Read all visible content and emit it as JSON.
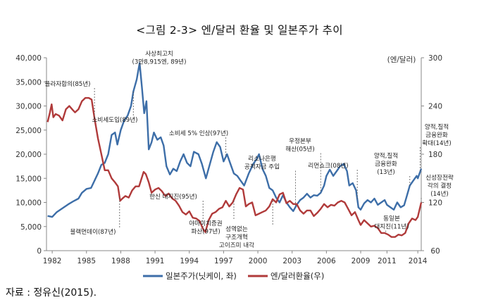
{
  "title": "<그림 2-3> 엔/달러 환율 및 일본주가 추이",
  "source": "자료 : 정유신(2015).",
  "chart_data": {
    "type": "line",
    "title": "<그림 2-3> 엔/달러 환율 및 일본주가 추이",
    "xlim": [
      1981.5,
      2014.3
    ],
    "x_ticks": [
      "1982",
      "1985",
      "1988",
      "1991",
      "1994",
      "1997",
      "2000",
      "2003",
      "2006",
      "2009",
      "2011",
      "2014"
    ],
    "x_tick_values": [
      1982,
      1985,
      1988,
      1991,
      1994,
      1997,
      2000,
      2003,
      2006,
      2009,
      2011.3,
      2014
    ],
    "y_left": {
      "ticks": [
        "0",
        "5,000",
        "10,000",
        "15,000",
        "20,000",
        "25,000",
        "30,000",
        "35,000",
        "40,000"
      ],
      "range": [
        0,
        40000
      ]
    },
    "y_right": {
      "label": "(엔/달러)",
      "ticks": [
        "60",
        "120",
        "180",
        "240",
        "300"
      ],
      "range": [
        60,
        300
      ]
    },
    "grid": false,
    "legend_position": "bottom",
    "series": [
      {
        "name": "일본주가(닛케이, 좌)",
        "axis": "left",
        "color": "#3d6ea8",
        "points": [
          [
            1981.6,
            7200
          ],
          [
            1982.0,
            7000
          ],
          [
            1982.4,
            8000
          ],
          [
            1982.9,
            8800
          ],
          [
            1983.4,
            9600
          ],
          [
            1983.9,
            10300
          ],
          [
            1984.3,
            10800
          ],
          [
            1984.6,
            12000
          ],
          [
            1985.0,
            12800
          ],
          [
            1985.4,
            13000
          ],
          [
            1985.7,
            14500
          ],
          [
            1986.0,
            16000
          ],
          [
            1986.3,
            17800
          ],
          [
            1986.6,
            18200
          ],
          [
            1986.9,
            20000
          ],
          [
            1987.2,
            24000
          ],
          [
            1987.5,
            24500
          ],
          [
            1987.7,
            22000
          ],
          [
            1988.0,
            25000
          ],
          [
            1988.3,
            27000
          ],
          [
            1988.6,
            28000
          ],
          [
            1988.9,
            30000
          ],
          [
            1989.1,
            33000
          ],
          [
            1989.4,
            35500
          ],
          [
            1989.65,
            38900
          ],
          [
            1989.85,
            34000
          ],
          [
            1990.05,
            28500
          ],
          [
            1990.25,
            31000
          ],
          [
            1990.45,
            21000
          ],
          [
            1990.7,
            22500
          ],
          [
            1990.9,
            24500
          ],
          [
            1991.2,
            23000
          ],
          [
            1991.5,
            23500
          ],
          [
            1991.75,
            21800
          ],
          [
            1992.0,
            17500
          ],
          [
            1992.3,
            15800
          ],
          [
            1992.6,
            17000
          ],
          [
            1992.9,
            16500
          ],
          [
            1993.2,
            18500
          ],
          [
            1993.5,
            20000
          ],
          [
            1993.8,
            18200
          ],
          [
            1994.1,
            17500
          ],
          [
            1994.4,
            20500
          ],
          [
            1994.8,
            20000
          ],
          [
            1995.1,
            18000
          ],
          [
            1995.45,
            15000
          ],
          [
            1995.75,
            17500
          ],
          [
            1996.1,
            20500
          ],
          [
            1996.4,
            22500
          ],
          [
            1996.7,
            21500
          ],
          [
            1997.0,
            18500
          ],
          [
            1997.3,
            20000
          ],
          [
            1997.6,
            18000
          ],
          [
            1997.9,
            16000
          ],
          [
            1998.2,
            15500
          ],
          [
            1998.5,
            14500
          ],
          [
            1998.8,
            13500
          ],
          [
            1999.2,
            16000
          ],
          [
            1999.6,
            18000
          ],
          [
            1999.9,
            19000
          ],
          [
            2000.1,
            20000
          ],
          [
            2000.4,
            17000
          ],
          [
            2000.7,
            15500
          ],
          [
            2001.0,
            13000
          ],
          [
            2001.3,
            12500
          ],
          [
            2001.6,
            11000
          ],
          [
            2001.9,
            10000
          ],
          [
            2002.2,
            11500
          ],
          [
            2002.5,
            10000
          ],
          [
            2002.8,
            9000
          ],
          [
            2003.1,
            8200
          ],
          [
            2003.4,
            9500
          ],
          [
            2003.7,
            10500
          ],
          [
            2004.0,
            11000
          ],
          [
            2004.3,
            11800
          ],
          [
            2004.6,
            11000
          ],
          [
            2004.9,
            11500
          ],
          [
            2005.2,
            11400
          ],
          [
            2005.5,
            12000
          ],
          [
            2005.8,
            13500
          ],
          [
            2006.0,
            15500
          ],
          [
            2006.3,
            16800
          ],
          [
            2006.6,
            15500
          ],
          [
            2006.9,
            16500
          ],
          [
            2007.2,
            17500
          ],
          [
            2007.5,
            18000
          ],
          [
            2007.8,
            16500
          ],
          [
            2008.0,
            13500
          ],
          [
            2008.3,
            14000
          ],
          [
            2008.6,
            12500
          ],
          [
            2008.8,
            9000
          ],
          [
            2009.0,
            8500
          ],
          [
            2009.3,
            9800
          ],
          [
            2009.6,
            10500
          ],
          [
            2009.9,
            10000
          ],
          [
            2010.2,
            10800
          ],
          [
            2010.5,
            9500
          ],
          [
            2010.8,
            10000
          ],
          [
            2011.1,
            10500
          ],
          [
            2011.3,
            9500
          ],
          [
            2011.6,
            9000
          ],
          [
            2011.9,
            8500
          ],
          [
            2012.2,
            10000
          ],
          [
            2012.5,
            9000
          ],
          [
            2012.8,
            9400
          ],
          [
            2013.0,
            11000
          ],
          [
            2013.3,
            13500
          ],
          [
            2013.6,
            14500
          ],
          [
            2013.9,
            15500
          ],
          [
            2014.0,
            15000
          ],
          [
            2014.3,
            17000
          ]
        ]
      },
      {
        "name": "엔/달러환율(우)",
        "axis": "right",
        "color": "#b03a3a",
        "points": [
          [
            1981.6,
            220
          ],
          [
            1981.8,
            232
          ],
          [
            1981.95,
            242
          ],
          [
            1982.1,
            226
          ],
          [
            1982.3,
            230
          ],
          [
            1982.6,
            228
          ],
          [
            1982.9,
            222
          ],
          [
            1983.2,
            236
          ],
          [
            1983.5,
            240
          ],
          [
            1983.8,
            235
          ],
          [
            1984.0,
            232
          ],
          [
            1984.3,
            236
          ],
          [
            1984.6,
            246
          ],
          [
            1984.9,
            250
          ],
          [
            1985.2,
            250
          ],
          [
            1985.45,
            248
          ],
          [
            1985.7,
            225
          ],
          [
            1986.0,
            200
          ],
          [
            1986.3,
            180
          ],
          [
            1986.6,
            160
          ],
          [
            1986.9,
            160
          ],
          [
            1987.2,
            150
          ],
          [
            1987.5,
            145
          ],
          [
            1987.75,
            140
          ],
          [
            1987.95,
            122
          ],
          [
            1988.15,
            125
          ],
          [
            1988.4,
            128
          ],
          [
            1988.7,
            126
          ],
          [
            1989.0,
            135
          ],
          [
            1989.3,
            140
          ],
          [
            1989.6,
            140
          ],
          [
            1990.0,
            158
          ],
          [
            1990.2,
            155
          ],
          [
            1990.45,
            145
          ],
          [
            1990.7,
            132
          ],
          [
            1991.0,
            136
          ],
          [
            1991.3,
            138
          ],
          [
            1991.6,
            134
          ],
          [
            1991.9,
            128
          ],
          [
            1992.2,
            131
          ],
          [
            1992.5,
            125
          ],
          [
            1992.8,
            122
          ],
          [
            1993.1,
            116
          ],
          [
            1993.4,
            108
          ],
          [
            1993.7,
            105
          ],
          [
            1994.0,
            109
          ],
          [
            1994.3,
            101
          ],
          [
            1994.6,
            100
          ],
          [
            1994.9,
            97
          ],
          [
            1995.2,
            87
          ],
          [
            1995.4,
            83
          ],
          [
            1995.7,
            98
          ],
          [
            1996.0,
            106
          ],
          [
            1996.3,
            108
          ],
          [
            1996.6,
            112
          ],
          [
            1996.9,
            114
          ],
          [
            1997.2,
            122
          ],
          [
            1997.5,
            115
          ],
          [
            1997.8,
            120
          ],
          [
            1998.1,
            130
          ],
          [
            1998.4,
            138
          ],
          [
            1998.7,
            136
          ],
          [
            1998.95,
            115
          ],
          [
            1999.2,
            118
          ],
          [
            1999.5,
            120
          ],
          [
            1999.8,
            104
          ],
          [
            2000.1,
            106
          ],
          [
            2000.4,
            108
          ],
          [
            2000.7,
            110
          ],
          [
            2001.0,
            115
          ],
          [
            2001.3,
            124
          ],
          [
            2001.6,
            120
          ],
          [
            2001.9,
            130
          ],
          [
            2002.2,
            132
          ],
          [
            2002.5,
            119
          ],
          [
            2002.8,
            122
          ],
          [
            2003.1,
            118
          ],
          [
            2003.4,
            118
          ],
          [
            2003.7,
            110
          ],
          [
            2004.0,
            106
          ],
          [
            2004.3,
            110
          ],
          [
            2004.6,
            110
          ],
          [
            2004.9,
            103
          ],
          [
            2005.2,
            107
          ],
          [
            2005.5,
            112
          ],
          [
            2005.8,
            118
          ],
          [
            2006.1,
            114
          ],
          [
            2006.4,
            117
          ],
          [
            2006.7,
            116
          ],
          [
            2007.0,
            120
          ],
          [
            2007.3,
            122
          ],
          [
            2007.6,
            120
          ],
          [
            2007.9,
            112
          ],
          [
            2008.2,
            104
          ],
          [
            2008.5,
            108
          ],
          [
            2008.8,
            98
          ],
          [
            2009.0,
            92
          ],
          [
            2009.3,
            98
          ],
          [
            2009.6,
            94
          ],
          [
            2009.9,
            90
          ],
          [
            2010.2,
            91
          ],
          [
            2010.5,
            88
          ],
          [
            2010.8,
            82
          ],
          [
            2011.1,
            82
          ],
          [
            2011.4,
            80
          ],
          [
            2011.7,
            77
          ],
          [
            2012.0,
            77
          ],
          [
            2012.3,
            80
          ],
          [
            2012.6,
            79
          ],
          [
            2012.9,
            82
          ],
          [
            2013.2,
            94
          ],
          [
            2013.5,
            100
          ],
          [
            2013.8,
            98
          ],
          [
            2014.0,
            102
          ],
          [
            2014.3,
            120
          ]
        ]
      }
    ],
    "annotations": [
      {
        "lines": [
          "사상최고치",
          "(3만8,915엔, 89년)"
        ],
        "x": 1989.65,
        "series": "left"
      },
      {
        "lines": [
          "플라자합의(85년)"
        ],
        "x": 1985.7,
        "series": "right"
      },
      {
        "lines": [
          "소비세도입(89년)"
        ],
        "x": 1989.1,
        "series": "left"
      },
      {
        "lines": [
          "블랙먼데이(87년)"
        ],
        "x": 1987.9,
        "series": "right"
      },
      {
        "lines": [
          "한신 대지진(95년)"
        ],
        "x": 1995.2,
        "series": "right"
      },
      {
        "lines": [
          "소비세 5% 인상(97년)"
        ],
        "x": 1997.2,
        "series": "left"
      },
      {
        "lines": [
          "야마이치증권",
          "파산(97년)"
        ],
        "x": 1997.9,
        "series": "right"
      },
      {
        "lines": [
          "성역없는",
          "구조개혁",
          "고이즈미 내각"
        ],
        "x": 2001.3,
        "series": "right"
      },
      {
        "lines": [
          "리소나은행",
          "공적자금 주입"
        ],
        "x": 2003.3,
        "series": "left"
      },
      {
        "lines": [
          "우정본부",
          "해산(05년)"
        ],
        "x": 2005.5,
        "series": "left"
      },
      {
        "lines": [
          "리먼쇼크(08년)"
        ],
        "x": 2008.7,
        "series": "left"
      },
      {
        "lines": [
          "양적,질적",
          "금융완화",
          "(13년)"
        ],
        "x": 2013.3,
        "series": "left"
      },
      {
        "lines": [
          "동일본",
          "대지진(11년)"
        ],
        "x": 2011.2,
        "series": "right"
      },
      {
        "lines": [
          "양적,질적",
          "금융완화",
          "확대(14년)"
        ],
        "x": 2014.2,
        "series": "left"
      },
      {
        "lines": [
          "신성장전략",
          "각의 결정",
          "(14년)"
        ],
        "x": 2014.3,
        "series": "right"
      }
    ]
  }
}
